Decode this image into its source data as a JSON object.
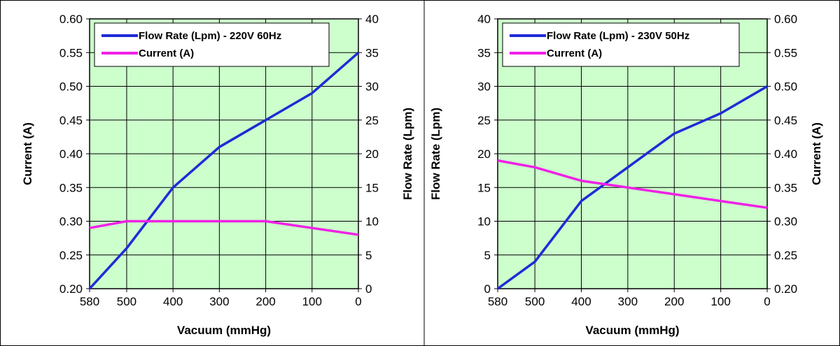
{
  "chart_data": [
    {
      "type": "line",
      "xlabel": "Vacuum (mmHg)",
      "x_ticks": [
        580,
        500,
        400,
        300,
        200,
        100,
        0
      ],
      "xlim": [
        580,
        0
      ],
      "left_axis": {
        "label": "Current (A)",
        "range": [
          0.2,
          0.6
        ],
        "ticks": [
          "0.20",
          "0.25",
          "0.30",
          "0.35",
          "0.40",
          "0.45",
          "0.50",
          "0.55",
          "0.60"
        ]
      },
      "right_axis": {
        "label": "Flow Rate (Lpm)",
        "range": [
          0,
          40
        ],
        "ticks": [
          "0",
          "5",
          "10",
          "15",
          "20",
          "25",
          "30",
          "35",
          "40"
        ]
      },
      "legend_placement": "top-left",
      "grid": true,
      "series": [
        {
          "name": "Flow Rate (Lpm) - 220V 60Hz",
          "axis": "right",
          "color": "#1f2bd6",
          "x": [
            580,
            500,
            400,
            300,
            200,
            100,
            0
          ],
          "values": [
            0,
            6,
            15,
            21,
            25,
            29,
            35
          ]
        },
        {
          "name": "Current (A)",
          "axis": "left",
          "color": "#f020e6",
          "x": [
            580,
            500,
            400,
            300,
            200,
            100,
            0
          ],
          "values": [
            0.29,
            0.3,
            0.3,
            0.3,
            0.3,
            0.29,
            0.28
          ]
        }
      ]
    },
    {
      "type": "line",
      "xlabel": "Vacuum (mmHg)",
      "x_ticks": [
        580,
        500,
        400,
        300,
        200,
        100,
        0
      ],
      "xlim": [
        580,
        0
      ],
      "left_axis": {
        "label": "Flow Rate (Lpm)",
        "range": [
          0,
          40
        ],
        "ticks": [
          "0",
          "5",
          "10",
          "15",
          "20",
          "25",
          "30",
          "35",
          "40"
        ]
      },
      "right_axis": {
        "label": "Current (A)",
        "range": [
          0.2,
          0.6
        ],
        "ticks": [
          "0.20",
          "0.25",
          "0.30",
          "0.35",
          "0.40",
          "0.45",
          "0.50",
          "0.55",
          "0.60"
        ]
      },
      "legend_placement": "top-left",
      "grid": true,
      "series": [
        {
          "name": "Flow Rate (Lpm) - 230V 50Hz",
          "axis": "left",
          "color": "#1f2bd6",
          "x": [
            580,
            500,
            400,
            300,
            200,
            100,
            0
          ],
          "values": [
            0,
            4,
            13,
            18,
            23,
            26,
            30
          ]
        },
        {
          "name": "Current (A)",
          "axis": "right",
          "color": "#f020e6",
          "x": [
            580,
            500,
            400,
            300,
            200,
            100,
            0
          ],
          "values": [
            0.39,
            0.38,
            0.36,
            0.35,
            0.34,
            0.33,
            0.32
          ]
        }
      ]
    }
  ],
  "colors": {
    "plot_bg": "#ccffcc",
    "grid": "#000000",
    "border": "#000000"
  }
}
